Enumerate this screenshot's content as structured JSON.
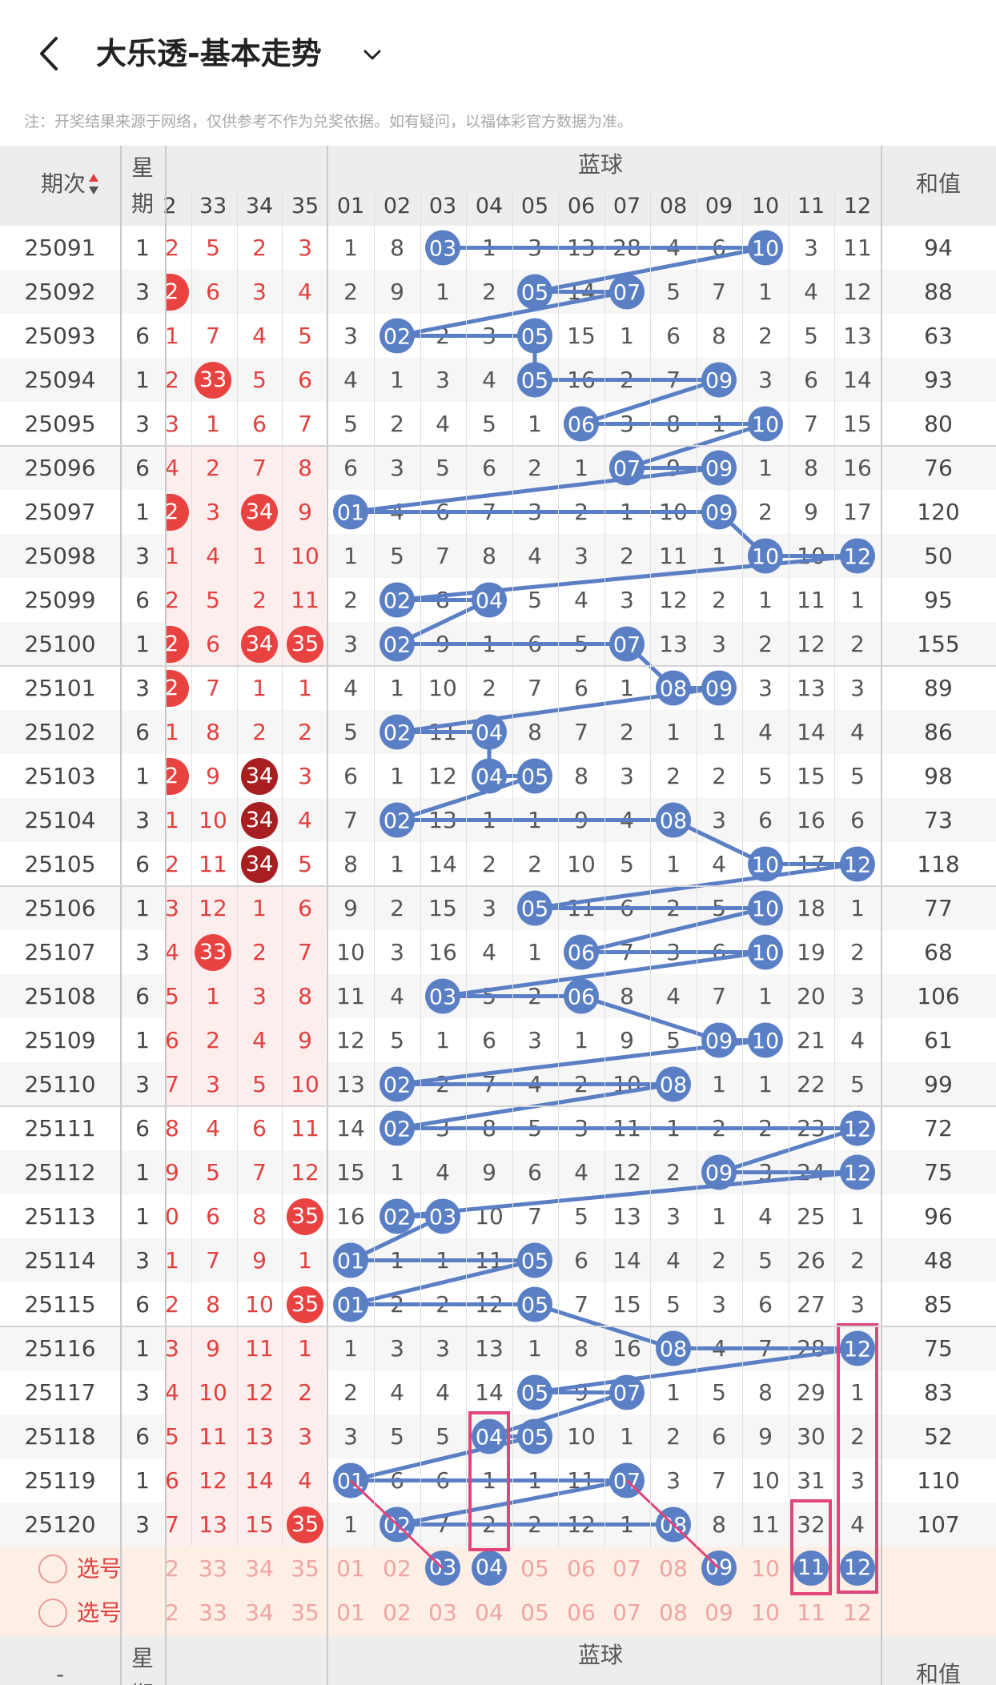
{
  "header": {
    "title": "大乐透-基本走势",
    "disclaimer": "注：开奖结果来源于网络，仅供参考不作为兑奖依据。如有疑问，以福体彩官方数据为准。"
  },
  "table_header": {
    "issue_label": "期次",
    "week_label_top": "星",
    "week_label_bottom": "期",
    "blue_group_label": "蓝球",
    "sum_label": "和值",
    "red_columns": [
      "2",
      "33",
      "34",
      "35"
    ],
    "blue_columns": [
      "01",
      "02",
      "03",
      "04",
      "05",
      "06",
      "07",
      "08",
      "09",
      "10",
      "11",
      "12"
    ]
  },
  "footer_header": {
    "issue_label": "-",
    "week_label_top": "星",
    "week_label_bottom": "期",
    "blue_group_label": "蓝球",
    "sum_label": "和值"
  },
  "select_rows": [
    {
      "label": "选号",
      "red": [
        "2",
        "33",
        "34",
        "35"
      ],
      "blue": [
        "01",
        "02",
        "03",
        "04",
        "05",
        "06",
        "07",
        "08",
        "09",
        "10",
        "11",
        "12"
      ]
    },
    {
      "label": "选号",
      "red": [
        "2",
        "33",
        "34",
        "35"
      ],
      "blue": [
        "01",
        "02",
        "03",
        "04",
        "05",
        "06",
        "07",
        "08",
        "09",
        "10",
        "11",
        "12"
      ]
    }
  ],
  "selected_blue_first_row": [
    "03",
    "04",
    "09",
    "11",
    "12"
  ],
  "colors": {
    "red_ball": "#e84341",
    "dark_red_ball": "#a81f22",
    "blue_ball": "#5a7fc4",
    "highlight_box": "#e2457b",
    "red_text": "#e0413f"
  },
  "rows": [
    {
      "issue": "25091",
      "week": "1",
      "red": [
        "2",
        "5",
        "2",
        "3"
      ],
      "blue": [
        "1",
        "8",
        "03",
        "1",
        "3",
        "13",
        "28",
        "4",
        "6",
        "10",
        "3",
        "11"
      ],
      "sum": "94"
    },
    {
      "issue": "25092",
      "week": "3",
      "red": [
        "2",
        "6",
        "3",
        "4"
      ],
      "blue": [
        "2",
        "9",
        "1",
        "2",
        "05",
        "14",
        "07",
        "5",
        "7",
        "1",
        "4",
        "12"
      ],
      "sum": "88"
    },
    {
      "issue": "25093",
      "week": "6",
      "red": [
        "1",
        "7",
        "4",
        "5"
      ],
      "blue": [
        "3",
        "02",
        "2",
        "3",
        "05",
        "15",
        "1",
        "6",
        "8",
        "2",
        "5",
        "13"
      ],
      "sum": "63"
    },
    {
      "issue": "25094",
      "week": "1",
      "red": [
        "2",
        "33",
        "5",
        "6"
      ],
      "blue": [
        "4",
        "1",
        "3",
        "4",
        "05",
        "16",
        "2",
        "7",
        "09",
        "3",
        "6",
        "14"
      ],
      "sum": "93"
    },
    {
      "issue": "25095",
      "week": "3",
      "red": [
        "3",
        "1",
        "6",
        "7"
      ],
      "blue": [
        "5",
        "2",
        "4",
        "5",
        "1",
        "06",
        "3",
        "8",
        "1",
        "10",
        "7",
        "15"
      ],
      "sum": "80"
    },
    {
      "issue": "25096",
      "week": "6",
      "red": [
        "4",
        "2",
        "7",
        "8"
      ],
      "blue": [
        "6",
        "3",
        "5",
        "6",
        "2",
        "1",
        "07",
        "9",
        "09",
        "1",
        "8",
        "16"
      ],
      "sum": "76"
    },
    {
      "issue": "25097",
      "week": "1",
      "red": [
        "2",
        "3",
        "34",
        "9"
      ],
      "blue": [
        "01",
        "4",
        "6",
        "7",
        "3",
        "2",
        "1",
        "10",
        "09",
        "2",
        "9",
        "17"
      ],
      "sum": "120"
    },
    {
      "issue": "25098",
      "week": "3",
      "red": [
        "1",
        "4",
        "1",
        "10"
      ],
      "blue": [
        "1",
        "5",
        "7",
        "8",
        "4",
        "3",
        "2",
        "11",
        "1",
        "10",
        "10",
        "12"
      ],
      "sum": "50"
    },
    {
      "issue": "25099",
      "week": "6",
      "red": [
        "2",
        "5",
        "2",
        "11"
      ],
      "blue": [
        "2",
        "02",
        "8",
        "04",
        "5",
        "4",
        "3",
        "12",
        "2",
        "1",
        "11",
        "1"
      ],
      "sum": "95"
    },
    {
      "issue": "25100",
      "week": "1",
      "red": [
        "2",
        "6",
        "34",
        "35"
      ],
      "blue": [
        "3",
        "02",
        "9",
        "1",
        "6",
        "5",
        "07",
        "13",
        "3",
        "2",
        "12",
        "2"
      ],
      "sum": "155"
    },
    {
      "issue": "25101",
      "week": "3",
      "red": [
        "2",
        "7",
        "1",
        "1"
      ],
      "blue": [
        "4",
        "1",
        "10",
        "2",
        "7",
        "6",
        "1",
        "08",
        "09",
        "3",
        "13",
        "3"
      ],
      "sum": "89"
    },
    {
      "issue": "25102",
      "week": "6",
      "red": [
        "1",
        "8",
        "2",
        "2"
      ],
      "blue": [
        "5",
        "02",
        "11",
        "04",
        "8",
        "7",
        "2",
        "1",
        "1",
        "4",
        "14",
        "4"
      ],
      "sum": "86"
    },
    {
      "issue": "25103",
      "week": "1",
      "red": [
        "2",
        "9",
        "34",
        "3"
      ],
      "blue": [
        "6",
        "1",
        "12",
        "04",
        "05",
        "8",
        "3",
        "2",
        "2",
        "5",
        "15",
        "5"
      ],
      "sum": "98"
    },
    {
      "issue": "25104",
      "week": "3",
      "red": [
        "1",
        "10",
        "34",
        "4"
      ],
      "blue": [
        "7",
        "02",
        "13",
        "1",
        "1",
        "9",
        "4",
        "08",
        "3",
        "6",
        "16",
        "6"
      ],
      "sum": "73"
    },
    {
      "issue": "25105",
      "week": "6",
      "red": [
        "2",
        "11",
        "34",
        "5"
      ],
      "blue": [
        "8",
        "1",
        "14",
        "2",
        "2",
        "10",
        "5",
        "1",
        "4",
        "10",
        "17",
        "12"
      ],
      "sum": "118"
    },
    {
      "issue": "25106",
      "week": "1",
      "red": [
        "3",
        "12",
        "1",
        "6"
      ],
      "blue": [
        "9",
        "2",
        "15",
        "3",
        "05",
        "11",
        "6",
        "2",
        "5",
        "10",
        "18",
        "1"
      ],
      "sum": "77"
    },
    {
      "issue": "25107",
      "week": "3",
      "red": [
        "4",
        "33",
        "2",
        "7"
      ],
      "blue": [
        "10",
        "3",
        "16",
        "4",
        "1",
        "06",
        "7",
        "3",
        "6",
        "10",
        "19",
        "2"
      ],
      "sum": "68"
    },
    {
      "issue": "25108",
      "week": "6",
      "red": [
        "5",
        "1",
        "3",
        "8"
      ],
      "blue": [
        "11",
        "4",
        "03",
        "5",
        "2",
        "06",
        "8",
        "4",
        "7",
        "1",
        "20",
        "3"
      ],
      "sum": "106"
    },
    {
      "issue": "25109",
      "week": "1",
      "red": [
        "6",
        "2",
        "4",
        "9"
      ],
      "blue": [
        "12",
        "5",
        "1",
        "6",
        "3",
        "1",
        "9",
        "5",
        "09",
        "10",
        "21",
        "4"
      ],
      "sum": "61"
    },
    {
      "issue": "25110",
      "week": "3",
      "red": [
        "7",
        "3",
        "5",
        "10"
      ],
      "blue": [
        "13",
        "02",
        "2",
        "7",
        "4",
        "2",
        "10",
        "08",
        "1",
        "1",
        "22",
        "5"
      ],
      "sum": "99"
    },
    {
      "issue": "25111",
      "week": "6",
      "red": [
        "8",
        "4",
        "6",
        "11"
      ],
      "blue": [
        "14",
        "02",
        "3",
        "8",
        "5",
        "3",
        "11",
        "1",
        "2",
        "2",
        "23",
        "12"
      ],
      "sum": "72"
    },
    {
      "issue": "25112",
      "week": "1",
      "red": [
        "9",
        "5",
        "7",
        "12"
      ],
      "blue": [
        "15",
        "1",
        "4",
        "9",
        "6",
        "4",
        "12",
        "2",
        "09",
        "3",
        "24",
        "12"
      ],
      "sum": "75"
    },
    {
      "issue": "25113",
      "week": "1",
      "red": [
        "0",
        "6",
        "8",
        "35"
      ],
      "blue": [
        "16",
        "02",
        "03",
        "10",
        "7",
        "5",
        "13",
        "3",
        "1",
        "4",
        "25",
        "1"
      ],
      "sum": "96"
    },
    {
      "issue": "25114",
      "week": "3",
      "red": [
        "1",
        "7",
        "9",
        "1"
      ],
      "blue": [
        "01",
        "1",
        "1",
        "11",
        "05",
        "6",
        "14",
        "4",
        "2",
        "5",
        "26",
        "2"
      ],
      "sum": "48"
    },
    {
      "issue": "25115",
      "week": "6",
      "red": [
        "2",
        "8",
        "10",
        "35"
      ],
      "blue": [
        "01",
        "2",
        "2",
        "12",
        "05",
        "7",
        "15",
        "5",
        "3",
        "6",
        "27",
        "3"
      ],
      "sum": "85"
    },
    {
      "issue": "25116",
      "week": "1",
      "red": [
        "3",
        "9",
        "11",
        "1"
      ],
      "blue": [
        "1",
        "3",
        "3",
        "13",
        "1",
        "8",
        "16",
        "08",
        "4",
        "7",
        "28",
        "12"
      ],
      "sum": "75"
    },
    {
      "issue": "25117",
      "week": "3",
      "red": [
        "4",
        "10",
        "12",
        "2"
      ],
      "blue": [
        "2",
        "4",
        "4",
        "14",
        "05",
        "9",
        "07",
        "1",
        "5",
        "8",
        "29",
        "1"
      ],
      "sum": "83"
    },
    {
      "issue": "25118",
      "week": "6",
      "red": [
        "5",
        "11",
        "13",
        "3"
      ],
      "blue": [
        "3",
        "5",
        "5",
        "04",
        "05",
        "10",
        "1",
        "2",
        "6",
        "9",
        "30",
        "2"
      ],
      "sum": "52"
    },
    {
      "issue": "25119",
      "week": "1",
      "red": [
        "6",
        "12",
        "14",
        "4"
      ],
      "blue": [
        "01",
        "6",
        "6",
        "1",
        "1",
        "11",
        "07",
        "3",
        "7",
        "10",
        "31",
        "3"
      ],
      "sum": "110"
    },
    {
      "issue": "25120",
      "week": "3",
      "red": [
        "7",
        "13",
        "15",
        "35"
      ],
      "blue": [
        "1",
        "02",
        "7",
        "2",
        "2",
        "12",
        "1",
        "08",
        "8",
        "11",
        "32",
        "4"
      ],
      "sum": "107"
    }
  ],
  "red_ball_marks": [
    {
      "row": 1,
      "col": 0,
      "style": "red"
    },
    {
      "row": 3,
      "col": 1,
      "style": "red"
    },
    {
      "row": 6,
      "col": 0,
      "style": "red"
    },
    {
      "row": 6,
      "col": 2,
      "style": "red"
    },
    {
      "row": 9,
      "col": 0,
      "style": "red"
    },
    {
      "row": 9,
      "col": 2,
      "style": "red"
    },
    {
      "row": 9,
      "col": 3,
      "style": "red"
    },
    {
      "row": 10,
      "col": 0,
      "style": "red"
    },
    {
      "row": 12,
      "col": 0,
      "style": "red"
    },
    {
      "row": 12,
      "col": 2,
      "style": "dark"
    },
    {
      "row": 13,
      "col": 2,
      "style": "dark"
    },
    {
      "row": 14,
      "col": 2,
      "style": "dark"
    },
    {
      "row": 16,
      "col": 1,
      "style": "red"
    },
    {
      "row": 22,
      "col": 3,
      "style": "red"
    },
    {
      "row": 24,
      "col": 3,
      "style": "red"
    },
    {
      "row": 29,
      "col": 3,
      "style": "red"
    }
  ],
  "blue_ball_marks": [
    [
      2,
      9
    ],
    [
      4,
      6
    ],
    [
      1,
      4
    ],
    [
      4,
      8
    ],
    [
      5,
      9
    ],
    [
      6,
      8
    ],
    [
      0,
      8
    ],
    [
      9,
      11
    ],
    [
      1,
      3
    ],
    [
      1,
      6
    ],
    [
      7,
      8
    ],
    [
      1,
      3
    ],
    [
      3,
      4
    ],
    [
      1,
      7
    ],
    [
      9,
      11
    ],
    [
      4,
      9
    ],
    [
      5,
      9
    ],
    [
      2,
      5
    ],
    [
      8,
      9
    ],
    [
      1,
      7
    ],
    [
      1,
      11
    ],
    [
      8,
      11
    ],
    [
      1,
      2
    ],
    [
      0,
      4
    ],
    [
      0,
      4
    ],
    [
      7,
      11
    ],
    [
      4,
      6
    ],
    [
      3,
      4
    ],
    [
      0,
      6
    ],
    [
      1,
      7
    ]
  ]
}
